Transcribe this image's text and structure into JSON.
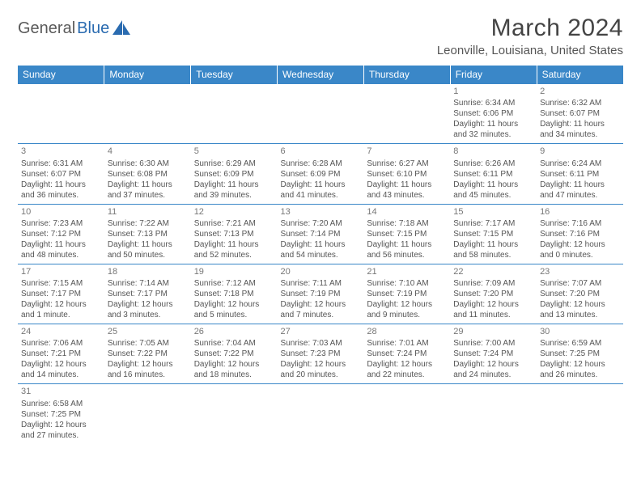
{
  "logo": {
    "general": "General",
    "blue": "Blue"
  },
  "title": "March 2024",
  "location": "Leonville, Louisiana, United States",
  "colors": {
    "header_bg": "#3a87c8",
    "header_text": "#ffffff",
    "border": "#3a87c8",
    "text": "#555555",
    "logo_gray": "#5a5a5a",
    "logo_blue": "#2a6bb0"
  },
  "typography": {
    "title_fontsize": 30,
    "location_fontsize": 15,
    "dayname_fontsize": 12,
    "cell_fontsize": 10
  },
  "day_names": [
    "Sunday",
    "Monday",
    "Tuesday",
    "Wednesday",
    "Thursday",
    "Friday",
    "Saturday"
  ],
  "weeks": [
    [
      null,
      null,
      null,
      null,
      null,
      {
        "n": "1",
        "sr": "Sunrise: 6:34 AM",
        "ss": "Sunset: 6:06 PM",
        "d1": "Daylight: 11 hours",
        "d2": "and 32 minutes."
      },
      {
        "n": "2",
        "sr": "Sunrise: 6:32 AM",
        "ss": "Sunset: 6:07 PM",
        "d1": "Daylight: 11 hours",
        "d2": "and 34 minutes."
      }
    ],
    [
      {
        "n": "3",
        "sr": "Sunrise: 6:31 AM",
        "ss": "Sunset: 6:07 PM",
        "d1": "Daylight: 11 hours",
        "d2": "and 36 minutes."
      },
      {
        "n": "4",
        "sr": "Sunrise: 6:30 AM",
        "ss": "Sunset: 6:08 PM",
        "d1": "Daylight: 11 hours",
        "d2": "and 37 minutes."
      },
      {
        "n": "5",
        "sr": "Sunrise: 6:29 AM",
        "ss": "Sunset: 6:09 PM",
        "d1": "Daylight: 11 hours",
        "d2": "and 39 minutes."
      },
      {
        "n": "6",
        "sr": "Sunrise: 6:28 AM",
        "ss": "Sunset: 6:09 PM",
        "d1": "Daylight: 11 hours",
        "d2": "and 41 minutes."
      },
      {
        "n": "7",
        "sr": "Sunrise: 6:27 AM",
        "ss": "Sunset: 6:10 PM",
        "d1": "Daylight: 11 hours",
        "d2": "and 43 minutes."
      },
      {
        "n": "8",
        "sr": "Sunrise: 6:26 AM",
        "ss": "Sunset: 6:11 PM",
        "d1": "Daylight: 11 hours",
        "d2": "and 45 minutes."
      },
      {
        "n": "9",
        "sr": "Sunrise: 6:24 AM",
        "ss": "Sunset: 6:11 PM",
        "d1": "Daylight: 11 hours",
        "d2": "and 47 minutes."
      }
    ],
    [
      {
        "n": "10",
        "sr": "Sunrise: 7:23 AM",
        "ss": "Sunset: 7:12 PM",
        "d1": "Daylight: 11 hours",
        "d2": "and 48 minutes."
      },
      {
        "n": "11",
        "sr": "Sunrise: 7:22 AM",
        "ss": "Sunset: 7:13 PM",
        "d1": "Daylight: 11 hours",
        "d2": "and 50 minutes."
      },
      {
        "n": "12",
        "sr": "Sunrise: 7:21 AM",
        "ss": "Sunset: 7:13 PM",
        "d1": "Daylight: 11 hours",
        "d2": "and 52 minutes."
      },
      {
        "n": "13",
        "sr": "Sunrise: 7:20 AM",
        "ss": "Sunset: 7:14 PM",
        "d1": "Daylight: 11 hours",
        "d2": "and 54 minutes."
      },
      {
        "n": "14",
        "sr": "Sunrise: 7:18 AM",
        "ss": "Sunset: 7:15 PM",
        "d1": "Daylight: 11 hours",
        "d2": "and 56 minutes."
      },
      {
        "n": "15",
        "sr": "Sunrise: 7:17 AM",
        "ss": "Sunset: 7:15 PM",
        "d1": "Daylight: 11 hours",
        "d2": "and 58 minutes."
      },
      {
        "n": "16",
        "sr": "Sunrise: 7:16 AM",
        "ss": "Sunset: 7:16 PM",
        "d1": "Daylight: 12 hours",
        "d2": "and 0 minutes."
      }
    ],
    [
      {
        "n": "17",
        "sr": "Sunrise: 7:15 AM",
        "ss": "Sunset: 7:17 PM",
        "d1": "Daylight: 12 hours",
        "d2": "and 1 minute."
      },
      {
        "n": "18",
        "sr": "Sunrise: 7:14 AM",
        "ss": "Sunset: 7:17 PM",
        "d1": "Daylight: 12 hours",
        "d2": "and 3 minutes."
      },
      {
        "n": "19",
        "sr": "Sunrise: 7:12 AM",
        "ss": "Sunset: 7:18 PM",
        "d1": "Daylight: 12 hours",
        "d2": "and 5 minutes."
      },
      {
        "n": "20",
        "sr": "Sunrise: 7:11 AM",
        "ss": "Sunset: 7:19 PM",
        "d1": "Daylight: 12 hours",
        "d2": "and 7 minutes."
      },
      {
        "n": "21",
        "sr": "Sunrise: 7:10 AM",
        "ss": "Sunset: 7:19 PM",
        "d1": "Daylight: 12 hours",
        "d2": "and 9 minutes."
      },
      {
        "n": "22",
        "sr": "Sunrise: 7:09 AM",
        "ss": "Sunset: 7:20 PM",
        "d1": "Daylight: 12 hours",
        "d2": "and 11 minutes."
      },
      {
        "n": "23",
        "sr": "Sunrise: 7:07 AM",
        "ss": "Sunset: 7:20 PM",
        "d1": "Daylight: 12 hours",
        "d2": "and 13 minutes."
      }
    ],
    [
      {
        "n": "24",
        "sr": "Sunrise: 7:06 AM",
        "ss": "Sunset: 7:21 PM",
        "d1": "Daylight: 12 hours",
        "d2": "and 14 minutes."
      },
      {
        "n": "25",
        "sr": "Sunrise: 7:05 AM",
        "ss": "Sunset: 7:22 PM",
        "d1": "Daylight: 12 hours",
        "d2": "and 16 minutes."
      },
      {
        "n": "26",
        "sr": "Sunrise: 7:04 AM",
        "ss": "Sunset: 7:22 PM",
        "d1": "Daylight: 12 hours",
        "d2": "and 18 minutes."
      },
      {
        "n": "27",
        "sr": "Sunrise: 7:03 AM",
        "ss": "Sunset: 7:23 PM",
        "d1": "Daylight: 12 hours",
        "d2": "and 20 minutes."
      },
      {
        "n": "28",
        "sr": "Sunrise: 7:01 AM",
        "ss": "Sunset: 7:24 PM",
        "d1": "Daylight: 12 hours",
        "d2": "and 22 minutes."
      },
      {
        "n": "29",
        "sr": "Sunrise: 7:00 AM",
        "ss": "Sunset: 7:24 PM",
        "d1": "Daylight: 12 hours",
        "d2": "and 24 minutes."
      },
      {
        "n": "30",
        "sr": "Sunrise: 6:59 AM",
        "ss": "Sunset: 7:25 PM",
        "d1": "Daylight: 12 hours",
        "d2": "and 26 minutes."
      }
    ],
    [
      {
        "n": "31",
        "sr": "Sunrise: 6:58 AM",
        "ss": "Sunset: 7:25 PM",
        "d1": "Daylight: 12 hours",
        "d2": "and 27 minutes."
      },
      null,
      null,
      null,
      null,
      null,
      null
    ]
  ]
}
